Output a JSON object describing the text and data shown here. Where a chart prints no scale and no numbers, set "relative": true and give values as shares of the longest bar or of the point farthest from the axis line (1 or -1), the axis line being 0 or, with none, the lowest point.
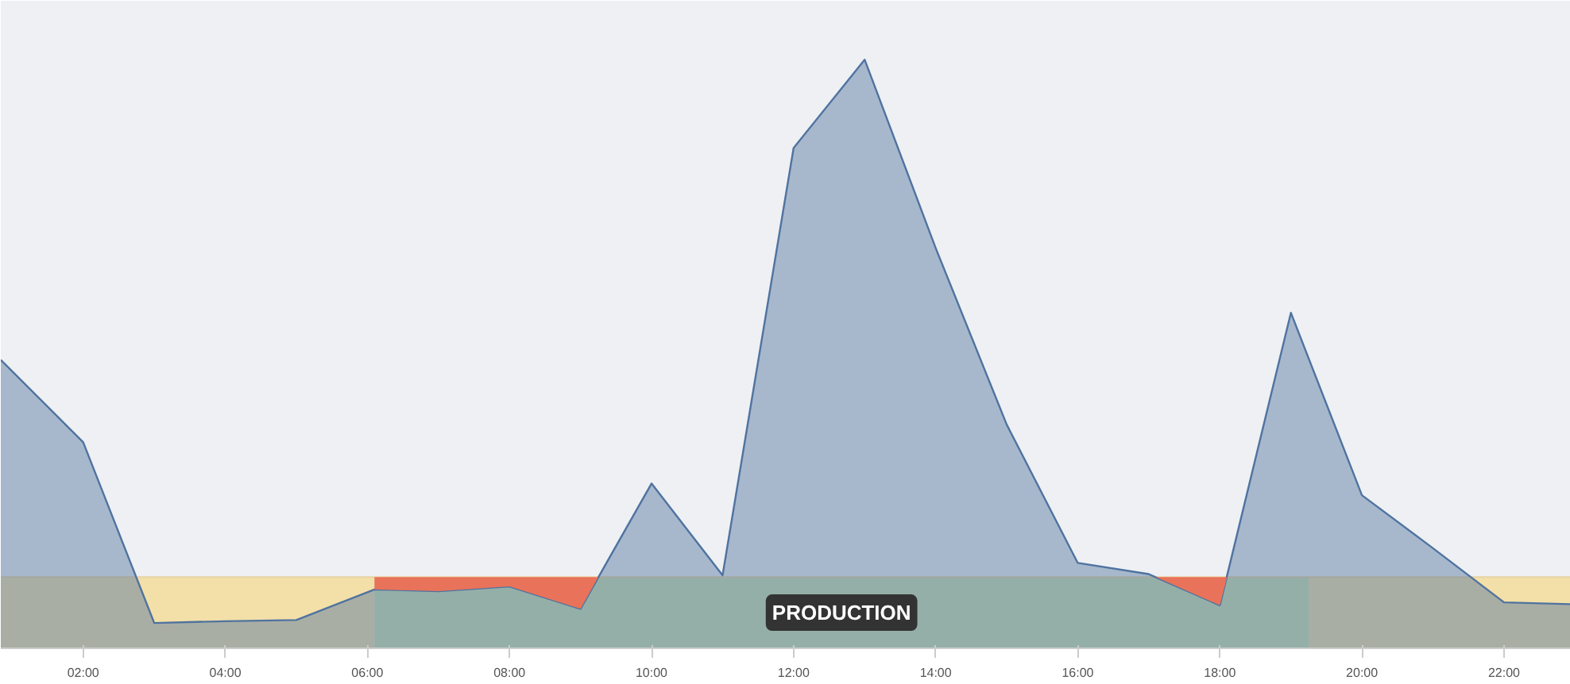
{
  "chart_data": {
    "type": "area",
    "relative": true,
    "x": [
      0.84,
      2,
      3,
      4,
      5,
      6.1,
      7,
      8,
      9,
      10,
      11,
      12,
      13,
      14,
      15,
      16,
      17,
      18,
      19,
      20,
      21,
      22,
      22.94
    ],
    "series": [
      {
        "color": "#4f73a0",
        "values": [
          0.49,
          0.35,
          0.043,
          0.046,
          0.048,
          0.1,
          0.097,
          0.105,
          0.067,
          0.28,
          0.124,
          0.85,
          1.0,
          0.68,
          0.38,
          0.145,
          0.126,
          0.073,
          0.57,
          0.26,
          0.17,
          0.078,
          0.075
        ]
      },
      {
        "type": "area",
        "color": "#e8735a",
        "x": [
          6.1,
          6.1,
          7,
          8,
          9,
          9.25,
          13,
          17.1,
          18,
          18.1
        ],
        "values": [
          0.121,
          0.1,
          0.097,
          0.105,
          0.067,
          0.121,
          null,
          0.121,
          0.073,
          0.121
        ]
      }
    ],
    "xlim": [
      0.84,
      22.94
    ],
    "xticks": [
      {
        "value": 2,
        "label": "02:00"
      },
      {
        "value": 4,
        "label": "04:00"
      },
      {
        "value": 6,
        "label": "06:00"
      },
      {
        "value": 8,
        "label": "08:00"
      },
      {
        "value": 10,
        "label": "10:00"
      },
      {
        "value": 12,
        "label": "12:00"
      },
      {
        "value": 14,
        "label": "14:00"
      },
      {
        "value": 16,
        "label": "16:00"
      },
      {
        "value": 18,
        "label": "18:00"
      },
      {
        "value": 20,
        "label": "20:00"
      },
      {
        "value": 22,
        "label": "22:00"
      }
    ],
    "ref_lines": [
      {
        "axis": "y",
        "value": 0.121,
        "label": null,
        "color": "#e9d3a0"
      }
    ],
    "bands": [
      {
        "axis": "x",
        "from": 0.84,
        "to": 6.1,
        "label": null,
        "color": "#f3dfa8"
      },
      {
        "axis": "x",
        "from": 6.1,
        "to": 19.25,
        "label": "PRODUCTION",
        "color": "#cde0b0"
      },
      {
        "axis": "x",
        "from": 19.25,
        "to": 22.94,
        "label": null,
        "color": "#f3dfa8"
      }
    ]
  }
}
